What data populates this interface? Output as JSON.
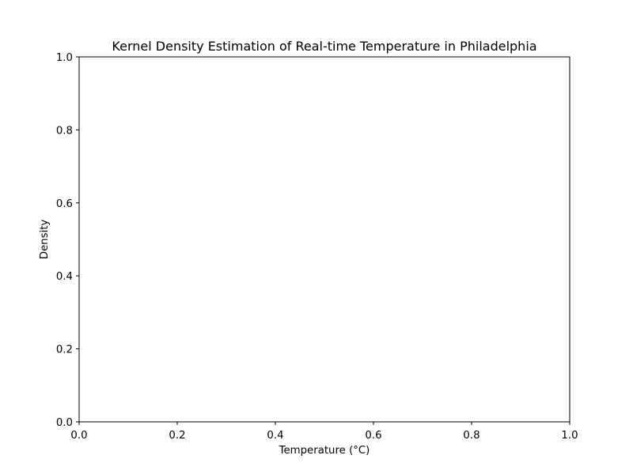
{
  "chart_data": {
    "type": "area",
    "title": "Kernel Density Estimation of Real-time Temperature in Philadelphia",
    "xlabel": "Temperature (°C)",
    "ylabel": "Density",
    "xlim": [
      0.0,
      1.0
    ],
    "ylim": [
      0.0,
      1.0
    ],
    "x_ticks": [
      "0.0",
      "0.2",
      "0.4",
      "0.6",
      "0.8",
      "1.0"
    ],
    "y_ticks": [
      "0.0",
      "0.2",
      "0.4",
      "0.6",
      "0.8",
      "1.0"
    ],
    "series": [],
    "grid": false,
    "legend": "none",
    "colors": {
      "axes": "#000000",
      "background": "#ffffff",
      "text": "#000000"
    }
  }
}
